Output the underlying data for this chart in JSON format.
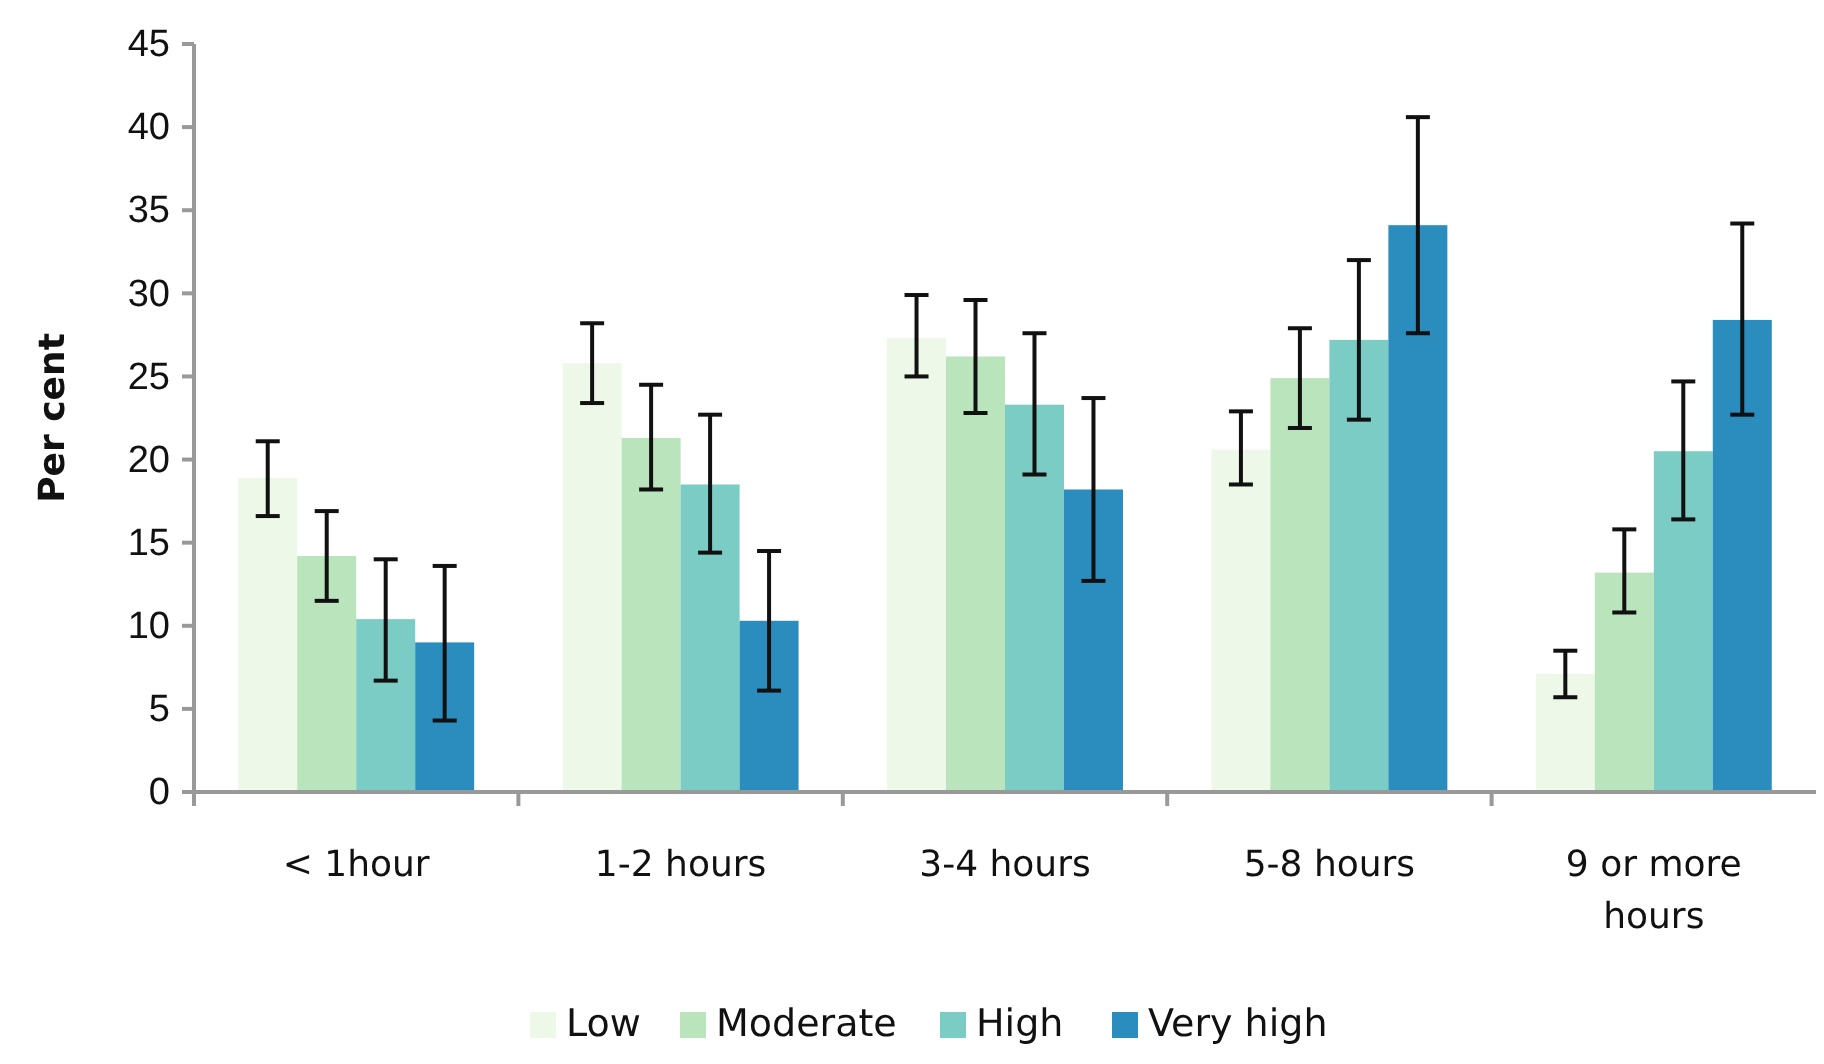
{
  "chart_data": {
    "type": "bar",
    "ylabel": "Per cent",
    "categories": [
      "< 1hour",
      "1-2 hours",
      "3-4 hours",
      "5-8 hours",
      "9 or more hours"
    ],
    "series": [
      {
        "name": "Low",
        "color": "#edf8e9",
        "values": [
          18.9,
          25.8,
          27.3,
          20.6,
          7.1
        ],
        "errors": [
          [
            16.6,
            21.1
          ],
          [
            23.4,
            28.2
          ],
          [
            25.0,
            29.9
          ],
          [
            18.5,
            22.9
          ],
          [
            5.7,
            8.5
          ]
        ]
      },
      {
        "name": "Moderate",
        "color": "#bae4bc",
        "values": [
          14.2,
          21.3,
          26.2,
          24.9,
          13.2
        ],
        "errors": [
          [
            11.5,
            16.9
          ],
          [
            18.2,
            24.5
          ],
          [
            22.8,
            29.6
          ],
          [
            21.9,
            27.9
          ],
          [
            10.8,
            15.8
          ]
        ]
      },
      {
        "name": "High",
        "color": "#7bccc4",
        "values": [
          10.4,
          18.5,
          23.3,
          27.2,
          20.5
        ],
        "errors": [
          [
            6.7,
            14.0
          ],
          [
            14.4,
            22.7
          ],
          [
            19.1,
            27.6
          ],
          [
            22.4,
            32.0
          ],
          [
            16.4,
            24.7
          ]
        ]
      },
      {
        "name": "Very high",
        "color": "#2b8cbe",
        "values": [
          9.0,
          10.3,
          18.2,
          34.1,
          28.4
        ],
        "errors": [
          [
            4.3,
            13.6
          ],
          [
            6.1,
            14.5
          ],
          [
            12.7,
            23.7
          ],
          [
            27.6,
            40.6
          ],
          [
            22.7,
            34.2
          ]
        ]
      }
    ],
    "ylim": [
      0,
      45
    ],
    "yticks": [
      0,
      5,
      10,
      15,
      20,
      25,
      30,
      35,
      40,
      45
    ],
    "grid": false,
    "legend": "bottom"
  }
}
